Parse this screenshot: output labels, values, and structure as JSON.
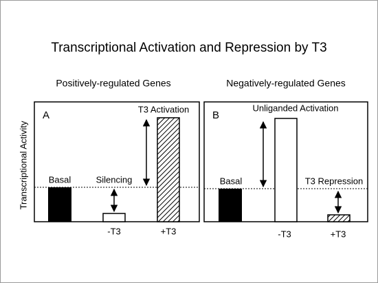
{
  "title": "Transcriptional Activation and Repression by T3",
  "y_axis_label": "Transcriptional Activity",
  "panels": [
    {
      "heading": "Positively-regulated Genes",
      "letter": "A",
      "basal": "Basal",
      "effect_minus": "Silencing",
      "effect_plus": "T3 Activation",
      "x_labels": [
        "-T3",
        "+T3"
      ]
    },
    {
      "heading": "Negatively-regulated Genes",
      "letter": "B",
      "basal": "Basal",
      "effect_minus": "Unliganded Activation",
      "effect_plus": "T3 Repression",
      "x_labels": [
        "-T3",
        "+T3"
      ]
    }
  ]
}
